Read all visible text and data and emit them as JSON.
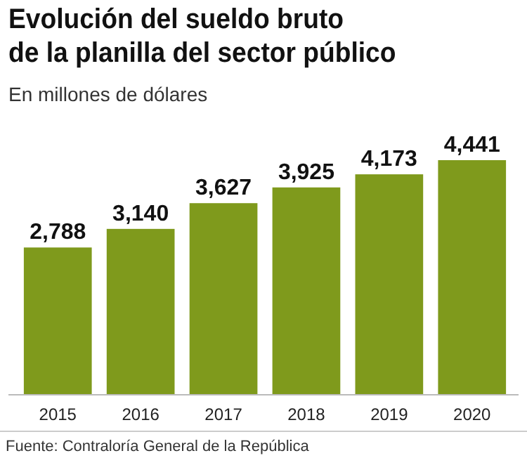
{
  "chart_data": {
    "type": "bar",
    "title": "Evolución del sueldo bruto\nde la planilla del sector público",
    "subtitle": "En millones de dólares",
    "categories": [
      "2015",
      "2016",
      "2017",
      "2018",
      "2019",
      "2020"
    ],
    "values": [
      2788,
      3140,
      3627,
      3925,
      4173,
      4441
    ],
    "value_labels": [
      "2,788",
      "3,140",
      "3,627",
      "3,925",
      "4,173",
      "4,441"
    ],
    "color": "#7f9a1c",
    "annotations": [
      "Fuente: Contraloría General de la República"
    ]
  }
}
